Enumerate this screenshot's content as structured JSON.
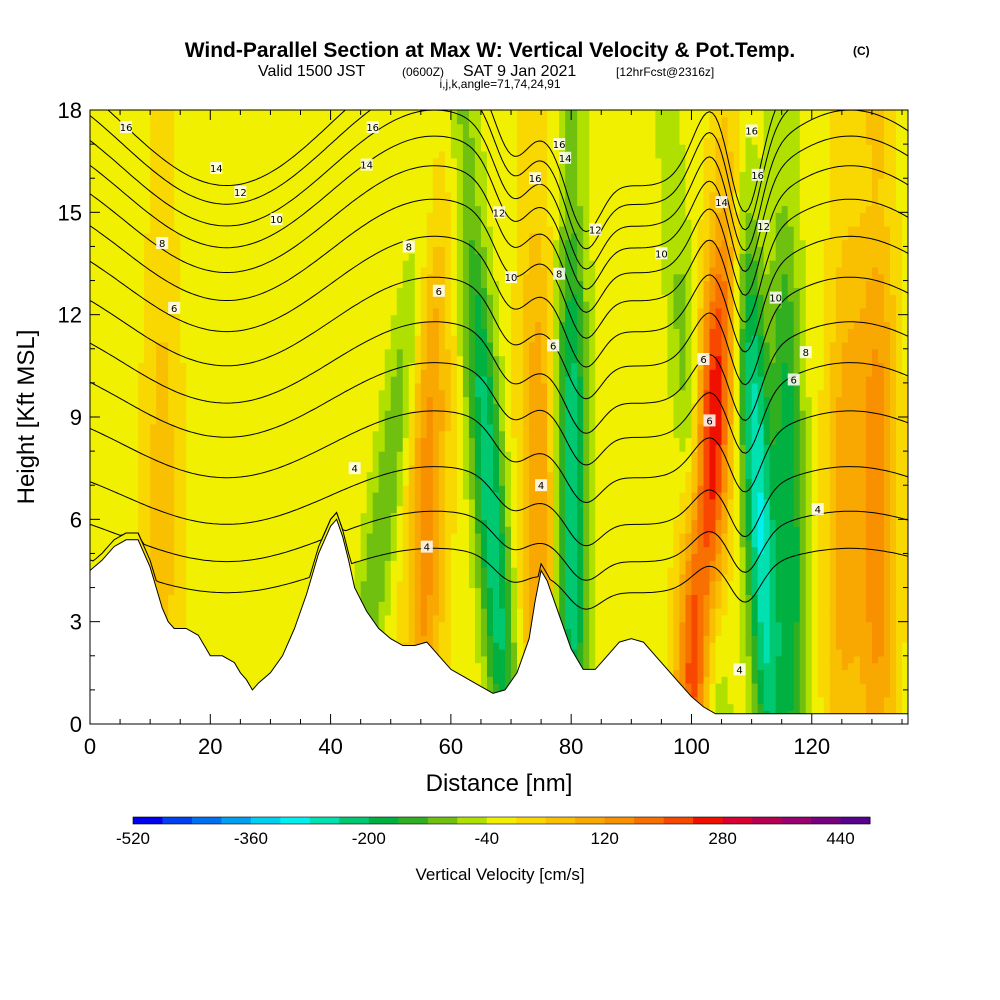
{
  "title": {
    "main": "Wind-Parallel Section at Max W: Vertical Velocity & Pot.Temp.",
    "copyright": "(C)",
    "valid_a": "Valid 1500 JST",
    "valid_utc": "(0600Z)",
    "valid_b": "SAT 9 Jan 2021",
    "fcst": "[12hrFcst@2316z]",
    "indices": "i,j,k,angle=71,74,24,91"
  },
  "colorbar": {
    "label": "Vertical Velocity [cm/s]",
    "tick_labels": [
      "-520",
      "-360",
      "-200",
      "-40",
      "120",
      "280",
      "440"
    ],
    "colors": [
      "#0000f0",
      "#0040f0",
      "#0070f0",
      "#00a0f0",
      "#00d0f0",
      "#00f0f0",
      "#00e0b0",
      "#00c870",
      "#00b040",
      "#30b020",
      "#70c010",
      "#b0e000",
      "#f0f000",
      "#f8d800",
      "#f8c000",
      "#f8a800",
      "#f89000",
      "#f87000",
      "#f84800",
      "#f01000",
      "#d80030",
      "#b80050",
      "#980070",
      "#780080",
      "#580090"
    ]
  },
  "chart_data": {
    "type": "heatmap",
    "xlabel": "Distance [nm]",
    "ylabel": "Height [Kft MSL]",
    "xlim": [
      0,
      136
    ],
    "ylim": [
      0,
      18
    ],
    "x_ticks": [
      0,
      20,
      40,
      60,
      80,
      100,
      120
    ],
    "y_ticks": [
      0,
      3,
      6,
      9,
      12,
      15,
      18
    ],
    "field": "vertical velocity (cm/s), color-filled",
    "overlay": "potential temperature contours (labelled)",
    "background_value": -20,
    "updraft_bands": [
      {
        "x_base": 12,
        "x_top": 12,
        "peak": 80
      },
      {
        "x_base": 55,
        "x_top": 58,
        "peak": 160
      },
      {
        "x_base": 75,
        "x_top": 74,
        "peak": 140
      },
      {
        "x_base": 100,
        "x_top": 107,
        "peak": 330
      },
      {
        "x_base": 131,
        "x_top": 131,
        "peak": 170
      },
      {
        "x_base": 125,
        "x_top": 126,
        "peak": 120
      }
    ],
    "downdraft_bands": [
      {
        "x_base": 44,
        "x_top": 58,
        "peak": -100
      },
      {
        "x_base": 69,
        "x_top": 62,
        "peak": -220
      },
      {
        "x_base": 80,
        "x_top": 80,
        "peak": -230
      },
      {
        "x_base": 113,
        "x_top": 108,
        "peak": -260
      },
      {
        "x_base": 117,
        "x_top": 115,
        "peak": -170
      },
      {
        "x_base": 104,
        "x_top": 96,
        "peak": -110
      }
    ],
    "terrain_kft": [
      [
        0,
        4.5
      ],
      [
        2,
        4.8
      ],
      [
        4,
        5.2
      ],
      [
        6,
        5.4
      ],
      [
        8,
        5.4
      ],
      [
        9,
        5.0
      ],
      [
        10,
        4.6
      ],
      [
        11,
        4.0
      ],
      [
        12,
        3.4
      ],
      [
        13,
        3.0
      ],
      [
        14,
        2.8
      ],
      [
        16,
        2.8
      ],
      [
        18,
        2.6
      ],
      [
        19,
        2.3
      ],
      [
        20,
        2.0
      ],
      [
        22,
        2.0
      ],
      [
        24,
        1.8
      ],
      [
        25,
        1.5
      ],
      [
        26,
        1.3
      ],
      [
        27,
        1.0
      ],
      [
        28,
        1.2
      ],
      [
        30,
        1.5
      ],
      [
        32,
        2.0
      ],
      [
        34,
        2.8
      ],
      [
        36,
        3.8
      ],
      [
        38,
        5.0
      ],
      [
        40,
        5.8
      ],
      [
        41,
        6.0
      ],
      [
        42,
        5.5
      ],
      [
        43,
        4.8
      ],
      [
        44,
        4.0
      ],
      [
        46,
        3.3
      ],
      [
        48,
        2.8
      ],
      [
        50,
        2.5
      ],
      [
        52,
        2.3
      ],
      [
        54,
        2.3
      ],
      [
        56,
        2.4
      ],
      [
        58,
        2.0
      ],
      [
        60,
        1.6
      ],
      [
        62,
        1.4
      ],
      [
        64,
        1.2
      ],
      [
        66,
        1.0
      ],
      [
        67,
        0.9
      ],
      [
        69,
        1.0
      ],
      [
        71,
        1.5
      ],
      [
        73,
        2.5
      ],
      [
        74,
        3.6
      ],
      [
        75,
        4.5
      ],
      [
        76,
        4.2
      ],
      [
        78,
        3.2
      ],
      [
        80,
        2.2
      ],
      [
        82,
        1.6
      ],
      [
        84,
        1.6
      ],
      [
        86,
        2.0
      ],
      [
        88,
        2.4
      ],
      [
        90,
        2.5
      ],
      [
        92,
        2.4
      ],
      [
        94,
        2.0
      ],
      [
        96,
        1.6
      ],
      [
        98,
        1.2
      ],
      [
        100,
        0.8
      ],
      [
        102,
        0.5
      ],
      [
        104,
        0.3
      ],
      [
        108,
        0.3
      ],
      [
        112,
        0.3
      ],
      [
        120,
        0.3
      ],
      [
        136,
        0.3
      ]
    ],
    "theta_contours": [
      {
        "base": 4.5,
        "label": "4",
        "label_positions": [
          [
            44,
            7.5
          ],
          [
            56,
            5.2
          ],
          [
            75,
            7.0
          ],
          [
            108,
            1.6
          ],
          [
            121,
            6.3
          ]
        ]
      },
      {
        "base": 5.5,
        "label": "",
        "label_positions": []
      },
      {
        "base": 6.7,
        "label": "",
        "label_positions": []
      },
      {
        "base": 8.2,
        "label": "",
        "label_positions": []
      },
      {
        "base": 9.5,
        "label": "6",
        "label_positions": [
          [
            103,
            8.9
          ],
          [
            77,
            11.1
          ]
        ]
      },
      {
        "base": 10.6,
        "label": "",
        "label_positions": []
      },
      {
        "base": 11.8,
        "label": "6",
        "label_positions": [
          [
            14,
            12.2
          ],
          [
            58,
            12.7
          ],
          [
            102,
            10.7
          ],
          [
            117,
            10.1
          ]
        ]
      },
      {
        "base": 12.9,
        "label": "8",
        "label_positions": [
          [
            78,
            13.2
          ]
        ]
      },
      {
        "base": 13.9,
        "label": "8",
        "label_positions": [
          [
            12,
            14.1
          ],
          [
            53,
            14.0
          ],
          [
            119,
            10.9
          ]
        ]
      },
      {
        "base": 14.8,
        "label": "10",
        "label_positions": [
          [
            31,
            14.8
          ],
          [
            70,
            13.1
          ],
          [
            95,
            13.8
          ],
          [
            114,
            12.5
          ]
        ]
      },
      {
        "base": 15.6,
        "label": "12",
        "label_positions": [
          [
            25,
            15.6
          ],
          [
            68,
            15.0
          ],
          [
            84,
            14.5
          ],
          [
            112,
            14.6
          ]
        ]
      },
      {
        "base": 16.3,
        "label": "14",
        "label_positions": [
          [
            21,
            16.3
          ],
          [
            46,
            16.4
          ],
          [
            79,
            16.6
          ],
          [
            105,
            15.3
          ]
        ]
      },
      {
        "base": 17.0,
        "label": "16",
        "label_positions": [
          [
            6,
            17.5
          ],
          [
            47,
            17.5
          ],
          [
            74,
            16.0
          ],
          [
            78,
            17.0
          ],
          [
            110,
            17.4
          ],
          [
            111,
            16.1
          ]
        ]
      },
      {
        "base": 17.6,
        "label": "",
        "label_positions": []
      }
    ]
  }
}
